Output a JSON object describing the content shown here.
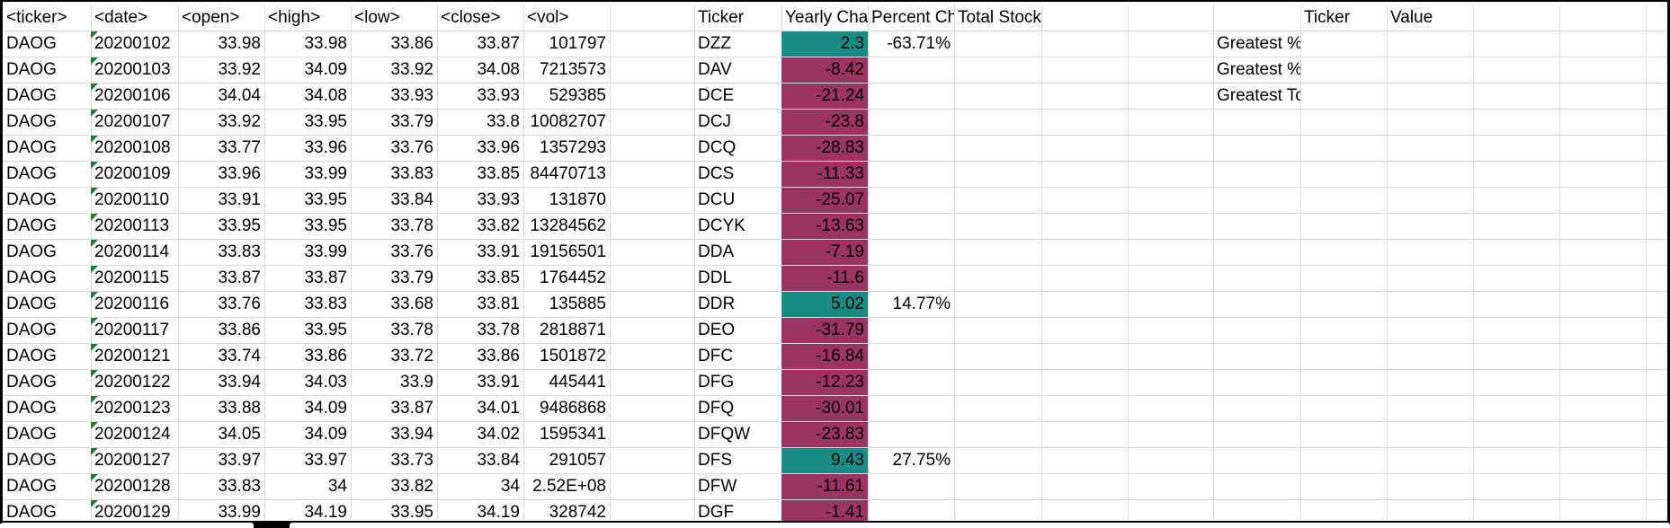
{
  "sheet": {
    "headers": [
      "<ticker>",
      "<date>",
      "<open>",
      "<high>",
      "<low>",
      "<close>",
      "<vol>",
      "",
      "Ticker",
      "Yearly Cha",
      "Percent Ch",
      "Total Stock Volume",
      "",
      "",
      "",
      "Ticker",
      "Value",
      "",
      "",
      "",
      "",
      ""
    ],
    "rows": [
      [
        "DAOG",
        "20200102",
        "33.98",
        "33.98",
        "33.86",
        "33.87",
        "101797",
        "",
        "DZZ",
        "2.3",
        "-63.71%",
        "",
        "",
        "",
        "Greatest % Increase",
        "",
        "",
        "",
        "",
        "",
        "",
        ""
      ],
      [
        "DAOG",
        "20200103",
        "33.92",
        "34.09",
        "33.92",
        "34.08",
        "7213573",
        "",
        "DAV",
        "-8.42",
        "",
        "",
        "",
        "",
        "Greatest % Decrease",
        "",
        "",
        "",
        "",
        "",
        "",
        ""
      ],
      [
        "DAOG",
        "20200106",
        "34.04",
        "34.08",
        "33.93",
        "33.93",
        "529385",
        "",
        "DCE",
        "-21.24",
        "",
        "",
        "",
        "",
        "Greatest Total Volume",
        "",
        "",
        "",
        "",
        "",
        "",
        ""
      ],
      [
        "DAOG",
        "20200107",
        "33.92",
        "33.95",
        "33.79",
        "33.8",
        "10082707",
        "",
        "DCJ",
        "-23.8",
        "",
        "",
        "",
        "",
        "",
        "",
        "",
        "",
        "",
        "",
        "",
        ""
      ],
      [
        "DAOG",
        "20200108",
        "33.77",
        "33.96",
        "33.76",
        "33.96",
        "1357293",
        "",
        "DCQ",
        "-28.83",
        "",
        "",
        "",
        "",
        "",
        "",
        "",
        "",
        "",
        "",
        "",
        ""
      ],
      [
        "DAOG",
        "20200109",
        "33.96",
        "33.99",
        "33.83",
        "33.85",
        "84470713",
        "",
        "DCS",
        "-11.33",
        "",
        "",
        "",
        "",
        "",
        "",
        "",
        "",
        "",
        "",
        "",
        ""
      ],
      [
        "DAOG",
        "20200110",
        "33.91",
        "33.95",
        "33.84",
        "33.93",
        "131870",
        "",
        "DCU",
        "-25.07",
        "",
        "",
        "",
        "",
        "",
        "",
        "",
        "",
        "",
        "",
        "",
        ""
      ],
      [
        "DAOG",
        "20200113",
        "33.95",
        "33.95",
        "33.78",
        "33.82",
        "13284562",
        "",
        "DCYK",
        "-13.63",
        "",
        "",
        "",
        "",
        "",
        "",
        "",
        "",
        "",
        "",
        "",
        ""
      ],
      [
        "DAOG",
        "20200114",
        "33.83",
        "33.99",
        "33.76",
        "33.91",
        "19156501",
        "",
        "DDA",
        "-7.19",
        "",
        "",
        "",
        "",
        "",
        "",
        "",
        "",
        "",
        "",
        "",
        ""
      ],
      [
        "DAOG",
        "20200115",
        "33.87",
        "33.87",
        "33.79",
        "33.85",
        "1764452",
        "",
        "DDL",
        "-11.6",
        "",
        "",
        "",
        "",
        "",
        "",
        "",
        "",
        "",
        "",
        "",
        ""
      ],
      [
        "DAOG",
        "20200116",
        "33.76",
        "33.83",
        "33.68",
        "33.81",
        "135885",
        "",
        "DDR",
        "5.02",
        "14.77%",
        "",
        "",
        "",
        "",
        "",
        "",
        "",
        "",
        "",
        "",
        ""
      ],
      [
        "DAOG",
        "20200117",
        "33.86",
        "33.95",
        "33.78",
        "33.78",
        "2818871",
        "",
        "DEO",
        "-31.79",
        "",
        "",
        "",
        "",
        "",
        "",
        "",
        "",
        "",
        "",
        "",
        ""
      ],
      [
        "DAOG",
        "20200121",
        "33.74",
        "33.86",
        "33.72",
        "33.86",
        "1501872",
        "",
        "DFC",
        "-16.84",
        "",
        "",
        "",
        "",
        "",
        "",
        "",
        "",
        "",
        "",
        "",
        ""
      ],
      [
        "DAOG",
        "20200122",
        "33.94",
        "34.03",
        "33.9",
        "33.91",
        "445441",
        "",
        "DFG",
        "-12.23",
        "",
        "",
        "",
        "",
        "",
        "",
        "",
        "",
        "",
        "",
        "",
        ""
      ],
      [
        "DAOG",
        "20200123",
        "33.88",
        "34.09",
        "33.87",
        "34.01",
        "9486868",
        "",
        "DFQ",
        "-30.01",
        "",
        "",
        "",
        "",
        "",
        "",
        "",
        "",
        "",
        "",
        "",
        ""
      ],
      [
        "DAOG",
        "20200124",
        "34.05",
        "34.09",
        "33.94",
        "34.02",
        "1595341",
        "",
        "DFQW",
        "-23.83",
        "",
        "",
        "",
        "",
        "",
        "",
        "",
        "",
        "",
        "",
        "",
        ""
      ],
      [
        "DAOG",
        "20200127",
        "33.97",
        "33.97",
        "33.73",
        "33.84",
        "291057",
        "",
        "DFS",
        "9.43",
        "27.75%",
        "",
        "",
        "",
        "",
        "",
        "",
        "",
        "",
        "",
        "",
        ""
      ],
      [
        "DAOG",
        "20200128",
        "33.83",
        "34",
        "33.82",
        "34",
        "2.52E+08",
        "",
        "DFW",
        "-11.61",
        "",
        "",
        "",
        "",
        "",
        "",
        "",
        "",
        "",
        "",
        "",
        ""
      ],
      [
        "DAOG",
        "20200129",
        "33.99",
        "34.19",
        "33.95",
        "34.19",
        "328742",
        "",
        "DGF",
        "-1.41",
        "",
        "",
        "",
        "",
        "",
        "",
        "",
        "",
        "",
        "",
        "",
        ""
      ]
    ]
  },
  "colors": {
    "positive_fill": "#1a8c86",
    "negative_fill": "#9b3462",
    "grid_line": "#d9d9d9",
    "text_flag": "#1f7a3a"
  }
}
